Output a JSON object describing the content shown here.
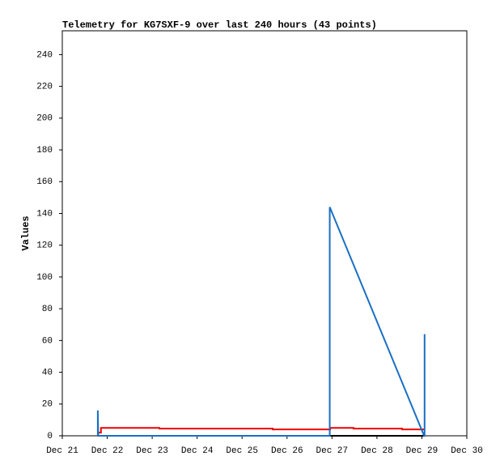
{
  "chart_data": {
    "type": "line",
    "title": "Telemetry for KG7SXF-9 over last 240 hours (43 points)",
    "y_label": "Values",
    "xlim": [
      21,
      30
    ],
    "xticks": [
      {
        "value": 21,
        "label": "Dec 21"
      },
      {
        "value": 22,
        "label": "Dec 22"
      },
      {
        "value": 23,
        "label": "Dec 23"
      },
      {
        "value": 24,
        "label": "Dec 24"
      },
      {
        "value": 25,
        "label": "Dec 25"
      },
      {
        "value": 26,
        "label": "Dec 26"
      },
      {
        "value": 27,
        "label": "Dec 27"
      },
      {
        "value": 28,
        "label": "Dec 28"
      },
      {
        "value": 29,
        "label": "Dec 29"
      },
      {
        "value": 30,
        "label": "Dec 30"
      }
    ],
    "ylim": [
      0,
      255
    ],
    "yticks": [
      0,
      20,
      40,
      60,
      80,
      100,
      120,
      140,
      160,
      180,
      200,
      220,
      240
    ],
    "grid": false,
    "series": [
      {
        "color": "#000000",
        "x": [
          21.79,
          29.06
        ],
        "values": [
          0,
          0
        ]
      },
      {
        "color": "#ee0000",
        "x": [
          21.79,
          21.86,
          21.86,
          23.16,
          23.16,
          25.68,
          25.68,
          26.96,
          26.96,
          27.48,
          27.48,
          28.56,
          28.56,
          29.06
        ],
        "values": [
          2,
          2,
          5,
          5,
          4.5,
          4.5,
          4,
          4,
          5,
          5,
          4.5,
          4.5,
          4,
          4
        ]
      },
      {
        "color": "#1a6fc4",
        "x": [
          21.79,
          21.79,
          21.8,
          26.95,
          26.95,
          29.05,
          29.06,
          29.06
        ],
        "values": [
          0,
          16,
          0,
          0,
          144,
          0,
          0,
          64
        ]
      }
    ]
  }
}
